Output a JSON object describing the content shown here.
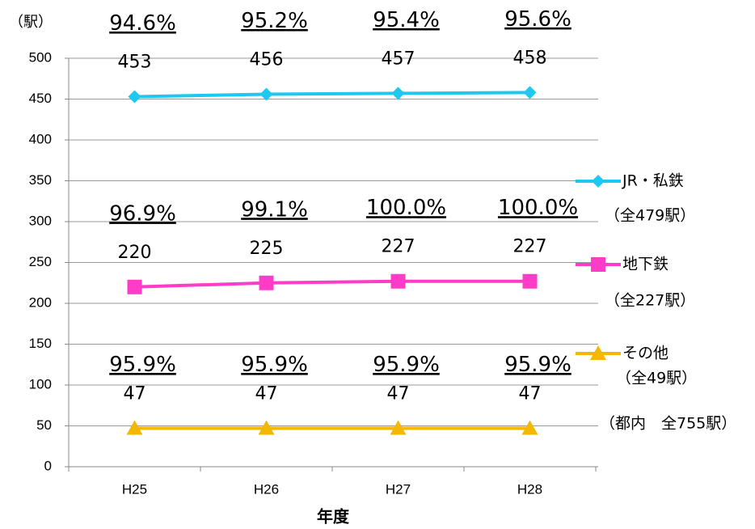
{
  "chart_data": {
    "type": "line",
    "y_label": "（駅）",
    "x_label": "年度",
    "categories": [
      "H25",
      "H26",
      "H27",
      "H28"
    ],
    "ylim": [
      0,
      500
    ],
    "yticks": [
      0,
      50,
      100,
      150,
      200,
      250,
      300,
      350,
      400,
      450,
      500
    ],
    "grid": true,
    "series": [
      {
        "name": "JR・私鉄",
        "legend_note": "（全479駅）",
        "color": "#1ec8f0",
        "marker": "diamond",
        "values": [
          453,
          456,
          457,
          458
        ],
        "rate_labels": [
          "94.6%",
          "95.2%",
          "95.4%",
          "95.6%"
        ]
      },
      {
        "name": "地下鉄",
        "legend_note": "（全227駅）",
        "color": "#ff3cc8",
        "marker": "square",
        "values": [
          220,
          225,
          227,
          227
        ],
        "rate_labels": [
          "96.9%",
          "99.1%",
          "100.0%",
          "100.0%"
        ]
      },
      {
        "name": "その他",
        "legend_note": "（全49駅）",
        "color": "#f5b800",
        "marker": "triangle",
        "values": [
          47,
          47,
          47,
          47
        ],
        "rate_labels": [
          "95.9%",
          "95.9%",
          "95.9%",
          "95.9%"
        ]
      }
    ],
    "note": "（都内　全755駅）"
  }
}
